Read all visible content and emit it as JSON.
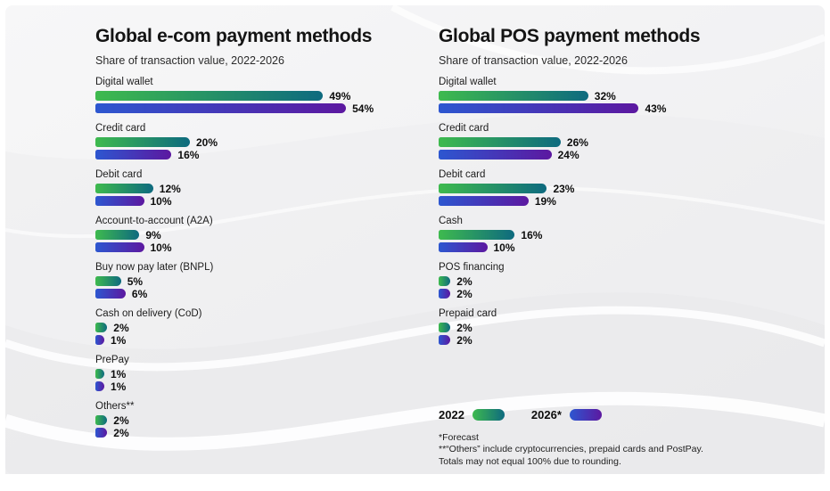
{
  "chart_data": [
    {
      "type": "bar",
      "orientation": "horizontal",
      "title": "Global e-com payment methods",
      "subtitle": "Share of transaction value, 2022-2026",
      "unit": "%",
      "xlim": [
        0,
        60
      ],
      "categories": [
        "Digital wallet",
        "Credit card",
        "Debit card",
        "Account-to-account (A2A)",
        "Buy now pay later (BNPL)",
        "Cash on delivery (CoD)",
        "PrePay",
        "Others**"
      ],
      "series": [
        {
          "name": "2022",
          "values": [
            49,
            20,
            12,
            9,
            5,
            2,
            1,
            2
          ]
        },
        {
          "name": "2026*",
          "values": [
            54,
            16,
            10,
            10,
            6,
            1,
            1,
            2
          ]
        }
      ]
    },
    {
      "type": "bar",
      "orientation": "horizontal",
      "title": "Global POS payment methods",
      "subtitle": "Share of transaction value, 2022-2026",
      "unit": "%",
      "xlim": [
        0,
        60
      ],
      "categories": [
        "Digital wallet",
        "Credit card",
        "Debit card",
        "Cash",
        "POS financing",
        "Prepaid card"
      ],
      "series": [
        {
          "name": "2022",
          "values": [
            32,
            26,
            23,
            16,
            2,
            2
          ]
        },
        {
          "name": "2026*",
          "values": [
            43,
            24,
            19,
            10,
            2,
            2
          ]
        }
      ]
    }
  ],
  "legend": {
    "items": [
      {
        "label": "2022",
        "swatch": "green-teal"
      },
      {
        "label": "2026*",
        "swatch": "blue-purple"
      }
    ]
  },
  "footnotes": [
    "*Forecast",
    "**“Others” include cryptocurrencies, prepaid cards and PostPay.",
    "Totals may not equal 100% due to rounding."
  ],
  "colors": {
    "bar_2022_start": "#3eba4e",
    "bar_2022_end": "#0e6a7f",
    "bar_2026_start": "#2d57d0",
    "bar_2026_end": "#5c18a0",
    "text": "#141414",
    "panel_background": "#f1f1f2"
  }
}
